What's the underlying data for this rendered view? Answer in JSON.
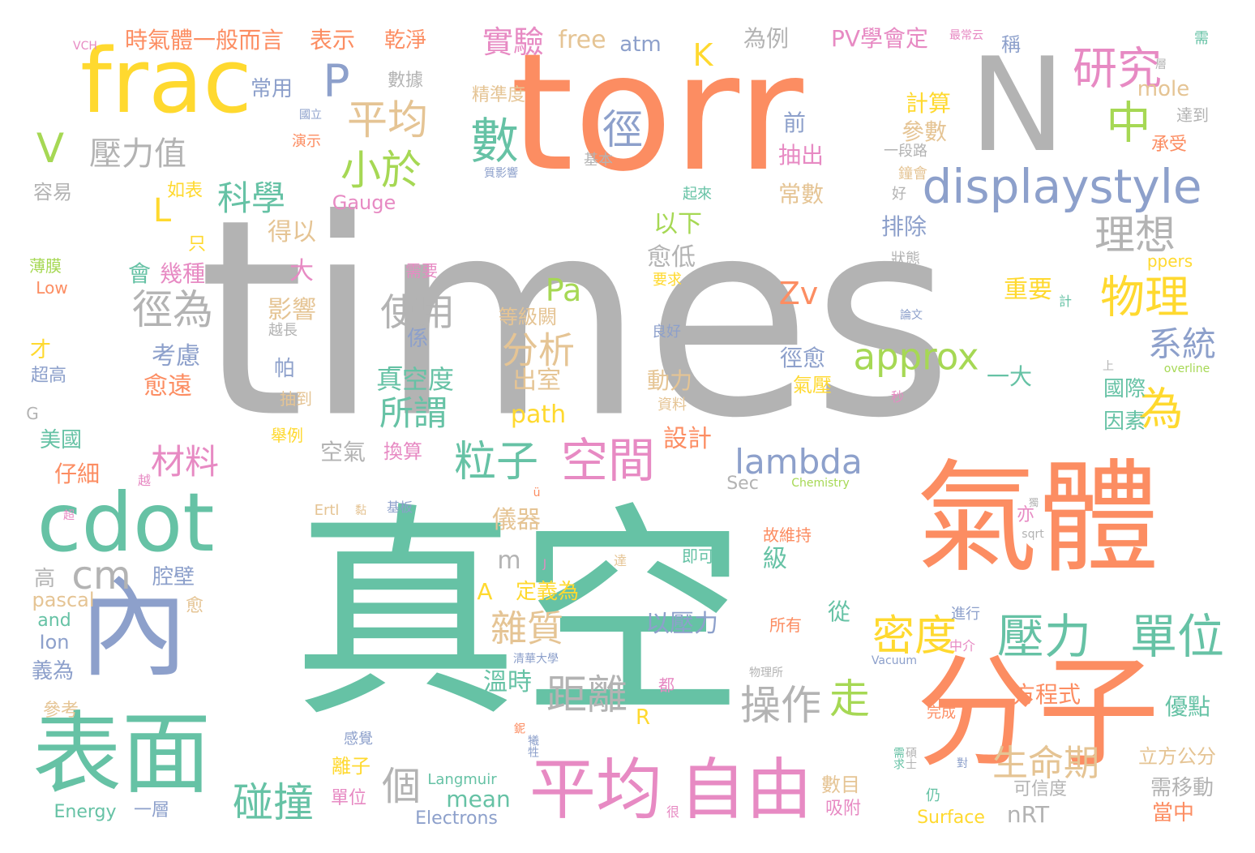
{
  "colors": {
    "gray": "#b3b3b3",
    "orange": "#fc8d62",
    "green": "#66c2a5",
    "yellow": "#ffd92f",
    "blue": "#8da0cb",
    "pink": "#e78ac3",
    "lime": "#a6d854",
    "tan": "#e5c494"
  },
  "words": [
    {
      "text": "times",
      "color": "gray"
    },
    {
      "text": "torr",
      "color": "orange"
    },
    {
      "text": "真空",
      "color": "green"
    },
    {
      "text": "氣體",
      "color": "orange"
    },
    {
      "text": "分子",
      "color": "orange"
    },
    {
      "text": "frac",
      "color": "yellow"
    },
    {
      "text": "N",
      "color": "gray"
    },
    {
      "text": "cdot",
      "color": "green"
    },
    {
      "text": "內",
      "color": "blue"
    },
    {
      "text": "表面",
      "color": "green"
    },
    {
      "text": "自由",
      "color": "pink"
    },
    {
      "text": "平均",
      "color": "pink"
    },
    {
      "text": "displaystyle",
      "color": "blue"
    },
    {
      "text": "研究",
      "color": "pink"
    },
    {
      "text": "中",
      "color": "lime"
    },
    {
      "text": "數",
      "color": "green"
    },
    {
      "text": "P",
      "color": "blue"
    },
    {
      "text": "V",
      "color": "lime"
    },
    {
      "text": "壓力值",
      "color": "gray"
    },
    {
      "text": "平均",
      "color": "tan"
    },
    {
      "text": "徑",
      "color": "blue"
    },
    {
      "text": "小於",
      "color": "lime"
    },
    {
      "text": "科學",
      "color": "green"
    },
    {
      "text": "L",
      "color": "yellow"
    },
    {
      "text": "理想",
      "color": "gray"
    },
    {
      "text": "物理",
      "color": "yellow"
    },
    {
      "text": "approx",
      "color": "lime"
    },
    {
      "text": "系統",
      "color": "blue"
    },
    {
      "text": "為",
      "color": "yellow"
    },
    {
      "text": "空間",
      "color": "pink"
    },
    {
      "text": "粒子",
      "color": "green"
    },
    {
      "text": "材料",
      "color": "pink"
    },
    {
      "text": "lambda",
      "color": "blue"
    },
    {
      "text": "壓力",
      "color": "green"
    },
    {
      "text": "單位",
      "color": "green"
    },
    {
      "text": "密度",
      "color": "yellow"
    },
    {
      "text": "生命期",
      "color": "tan"
    },
    {
      "text": "操作",
      "color": "gray"
    },
    {
      "text": "距離",
      "color": "gray"
    },
    {
      "text": "雜質",
      "color": "tan"
    },
    {
      "text": "碰撞",
      "color": "green"
    },
    {
      "text": "個",
      "color": "gray"
    },
    {
      "text": "走",
      "color": "lime"
    },
    {
      "text": "cm",
      "color": "gray"
    },
    {
      "text": "徑為",
      "color": "gray"
    },
    {
      "text": "使用",
      "color": "gray"
    },
    {
      "text": "分析",
      "color": "tan"
    },
    {
      "text": "所謂",
      "color": "green"
    },
    {
      "text": "Pa",
      "color": "lime"
    },
    {
      "text": "Zv",
      "color": "orange"
    },
    {
      "text": "K",
      "color": "yellow"
    },
    {
      "text": "實驗",
      "color": "pink"
    },
    {
      "text": "free",
      "color": "tan"
    },
    {
      "text": "atm",
      "color": "blue"
    },
    {
      "text": "時氣體一般而言",
      "color": "orange"
    },
    {
      "text": "表示",
      "color": "orange"
    },
    {
      "text": "乾淨",
      "color": "orange"
    },
    {
      "text": "PV學會定",
      "color": "pink"
    },
    {
      "text": "為例",
      "color": "gray"
    },
    {
      "text": "稱",
      "color": "blue"
    },
    {
      "text": "數據",
      "color": "gray"
    },
    {
      "text": "常用",
      "color": "blue"
    },
    {
      "text": "精準度",
      "color": "tan"
    },
    {
      "text": "計算",
      "color": "yellow"
    },
    {
      "text": "參數",
      "color": "tan"
    },
    {
      "text": "mole",
      "color": "tan"
    },
    {
      "text": "前",
      "color": "blue"
    },
    {
      "text": "抽出",
      "color": "pink"
    },
    {
      "text": "常數",
      "color": "tan"
    },
    {
      "text": "排除",
      "color": "blue"
    },
    {
      "text": "得以",
      "color": "tan"
    },
    {
      "text": "以下",
      "color": "lime"
    },
    {
      "text": "愈低",
      "color": "gray"
    },
    {
      "text": "大",
      "color": "pink"
    },
    {
      "text": "會",
      "color": "green"
    },
    {
      "text": "幾種",
      "color": "pink"
    },
    {
      "text": "影響",
      "color": "tan"
    },
    {
      "text": "重要",
      "color": "yellow"
    },
    {
      "text": "考慮",
      "color": "blue"
    },
    {
      "text": "愈遠",
      "color": "orange"
    },
    {
      "text": "帕",
      "color": "blue"
    },
    {
      "text": "係",
      "color": "blue"
    },
    {
      "text": "真空度",
      "color": "green"
    },
    {
      "text": "出室",
      "color": "tan"
    },
    {
      "text": "動力",
      "color": "tan"
    },
    {
      "text": "徑愈",
      "color": "blue"
    },
    {
      "text": "氣壓",
      "color": "yellow"
    },
    {
      "text": "一大",
      "color": "green"
    },
    {
      "text": "國際",
      "color": "green"
    },
    {
      "text": "因素",
      "color": "green"
    },
    {
      "text": "path",
      "color": "yellow"
    },
    {
      "text": "設計",
      "color": "orange"
    },
    {
      "text": "空氣",
      "color": "gray"
    },
    {
      "text": "換算",
      "color": "pink"
    },
    {
      "text": "美國",
      "color": "green"
    },
    {
      "text": "仔細",
      "color": "orange"
    },
    {
      "text": "儀器",
      "color": "tan"
    },
    {
      "text": "m",
      "color": "gray"
    },
    {
      "text": "A",
      "color": "yellow"
    },
    {
      "text": "定義為",
      "color": "yellow"
    },
    {
      "text": "以壓力",
      "color": "blue"
    },
    {
      "text": "級",
      "color": "green"
    },
    {
      "text": "從",
      "color": "green"
    },
    {
      "text": "方程式",
      "color": "orange"
    },
    {
      "text": "優點",
      "color": "green"
    },
    {
      "text": "溫時",
      "color": "green"
    },
    {
      "text": "高",
      "color": "gray"
    },
    {
      "text": "腔壁",
      "color": "blue"
    },
    {
      "text": "pascal",
      "color": "tan"
    },
    {
      "text": "and",
      "color": "green"
    },
    {
      "text": "Ion",
      "color": "blue"
    },
    {
      "text": "義為",
      "color": "blue"
    },
    {
      "text": "參考",
      "color": "tan"
    },
    {
      "text": "一層",
      "color": "blue"
    },
    {
      "text": "Energy",
      "color": "green"
    },
    {
      "text": "Langmuir",
      "color": "green"
    },
    {
      "text": "mean",
      "color": "green"
    },
    {
      "text": "Electrons",
      "color": "blue"
    },
    {
      "text": "Surface",
      "color": "yellow"
    },
    {
      "text": "nRT",
      "color": "gray"
    },
    {
      "text": "數目",
      "color": "tan"
    },
    {
      "text": "吸附",
      "color": "pink"
    },
    {
      "text": "可信度",
      "color": "gray"
    },
    {
      "text": "需移動",
      "color": "gray"
    },
    {
      "text": "立方公分",
      "color": "tan"
    },
    {
      "text": "當中",
      "color": "orange"
    },
    {
      "text": "離子",
      "color": "yellow"
    },
    {
      "text": "單位",
      "color": "pink"
    },
    {
      "text": "R",
      "color": "yellow"
    },
    {
      "text": "Sec",
      "color": "gray"
    },
    {
      "text": "Chemistry",
      "color": "lime"
    },
    {
      "text": "Ertl",
      "color": "tan"
    },
    {
      "text": "基板",
      "color": "blue"
    },
    {
      "text": "故維持",
      "color": "orange"
    },
    {
      "text": "即可",
      "color": "green"
    },
    {
      "text": "所有",
      "color": "orange"
    },
    {
      "text": "進行",
      "color": "blue"
    },
    {
      "text": "完成",
      "color": "orange"
    },
    {
      "text": "亦",
      "color": "pink"
    },
    {
      "text": "sqrt",
      "color": "gray"
    },
    {
      "text": "Vacuum",
      "color": "blue"
    },
    {
      "text": "物理所",
      "color": "gray"
    },
    {
      "text": "清華大學",
      "color": "blue"
    },
    {
      "text": "中介",
      "color": "pink"
    },
    {
      "text": "感覺",
      "color": "blue"
    },
    {
      "text": "都",
      "color": "pink"
    },
    {
      "text": "仍",
      "color": "green"
    },
    {
      "text": "對",
      "color": "blue"
    },
    {
      "text": "很",
      "color": "pink"
    },
    {
      "text": "Gauge",
      "color": "pink"
    },
    {
      "text": "如表",
      "color": "yellow"
    },
    {
      "text": "容易",
      "color": "gray"
    },
    {
      "text": "只",
      "color": "yellow"
    },
    {
      "text": "薄膜",
      "color": "lime"
    },
    {
      "text": "Low",
      "color": "orange"
    },
    {
      "text": "才",
      "color": "yellow"
    },
    {
      "text": "超高",
      "color": "blue"
    },
    {
      "text": "G",
      "color": "gray"
    },
    {
      "text": "越長",
      "color": "gray"
    },
    {
      "text": "抽到",
      "color": "tan"
    },
    {
      "text": "舉例",
      "color": "yellow"
    },
    {
      "text": "需要",
      "color": "pink"
    },
    {
      "text": "要求",
      "color": "yellow"
    },
    {
      "text": "等級闕",
      "color": "tan"
    },
    {
      "text": "良好",
      "color": "blue"
    },
    {
      "text": "資料",
      "color": "tan"
    },
    {
      "text": "秒",
      "color": "pink"
    },
    {
      "text": "論文",
      "color": "blue"
    },
    {
      "text": "上",
      "color": "gray"
    },
    {
      "text": "overline",
      "color": "lime"
    },
    {
      "text": "計",
      "color": "green"
    },
    {
      "text": "ppers",
      "color": "yellow"
    },
    {
      "text": "狀態",
      "color": "gray"
    },
    {
      "text": "好",
      "color": "gray"
    },
    {
      "text": "起來",
      "color": "green"
    },
    {
      "text": "一段路",
      "color": "gray"
    },
    {
      "text": "鐘會",
      "color": "tan"
    },
    {
      "text": "承受",
      "color": "orange"
    },
    {
      "text": "達到",
      "color": "gray"
    },
    {
      "text": "層",
      "color": "gray"
    },
    {
      "text": "需",
      "color": "green"
    },
    {
      "text": "基本",
      "color": "gray"
    },
    {
      "text": "質影響",
      "color": "blue"
    },
    {
      "text": "國立",
      "color": "blue"
    },
    {
      "text": "演示",
      "color": "orange"
    },
    {
      "text": "VCH",
      "color": "pink"
    },
    {
      "text": "最常云",
      "color": "pink"
    },
    {
      "text": "愈",
      "color": "tan"
    },
    {
      "text": "越",
      "color": "pink"
    },
    {
      "text": "超",
      "color": "pink"
    },
    {
      "text": "ü",
      "color": "orange"
    },
    {
      "text": "黏",
      "color": "tan"
    },
    {
      "text": "達",
      "color": "tan"
    },
    {
      "text": "J",
      "color": "pink"
    },
    {
      "text": "碩士",
      "color": "gray"
    },
    {
      "text": "需求",
      "color": "green"
    },
    {
      "text": "鈮",
      "color": "orange"
    },
    {
      "text": "犧牲",
      "color": "blue"
    },
    {
      "text": "獨",
      "color": "gray"
    },
    {
      "text": "_",
      "color": "green"
    }
  ]
}
